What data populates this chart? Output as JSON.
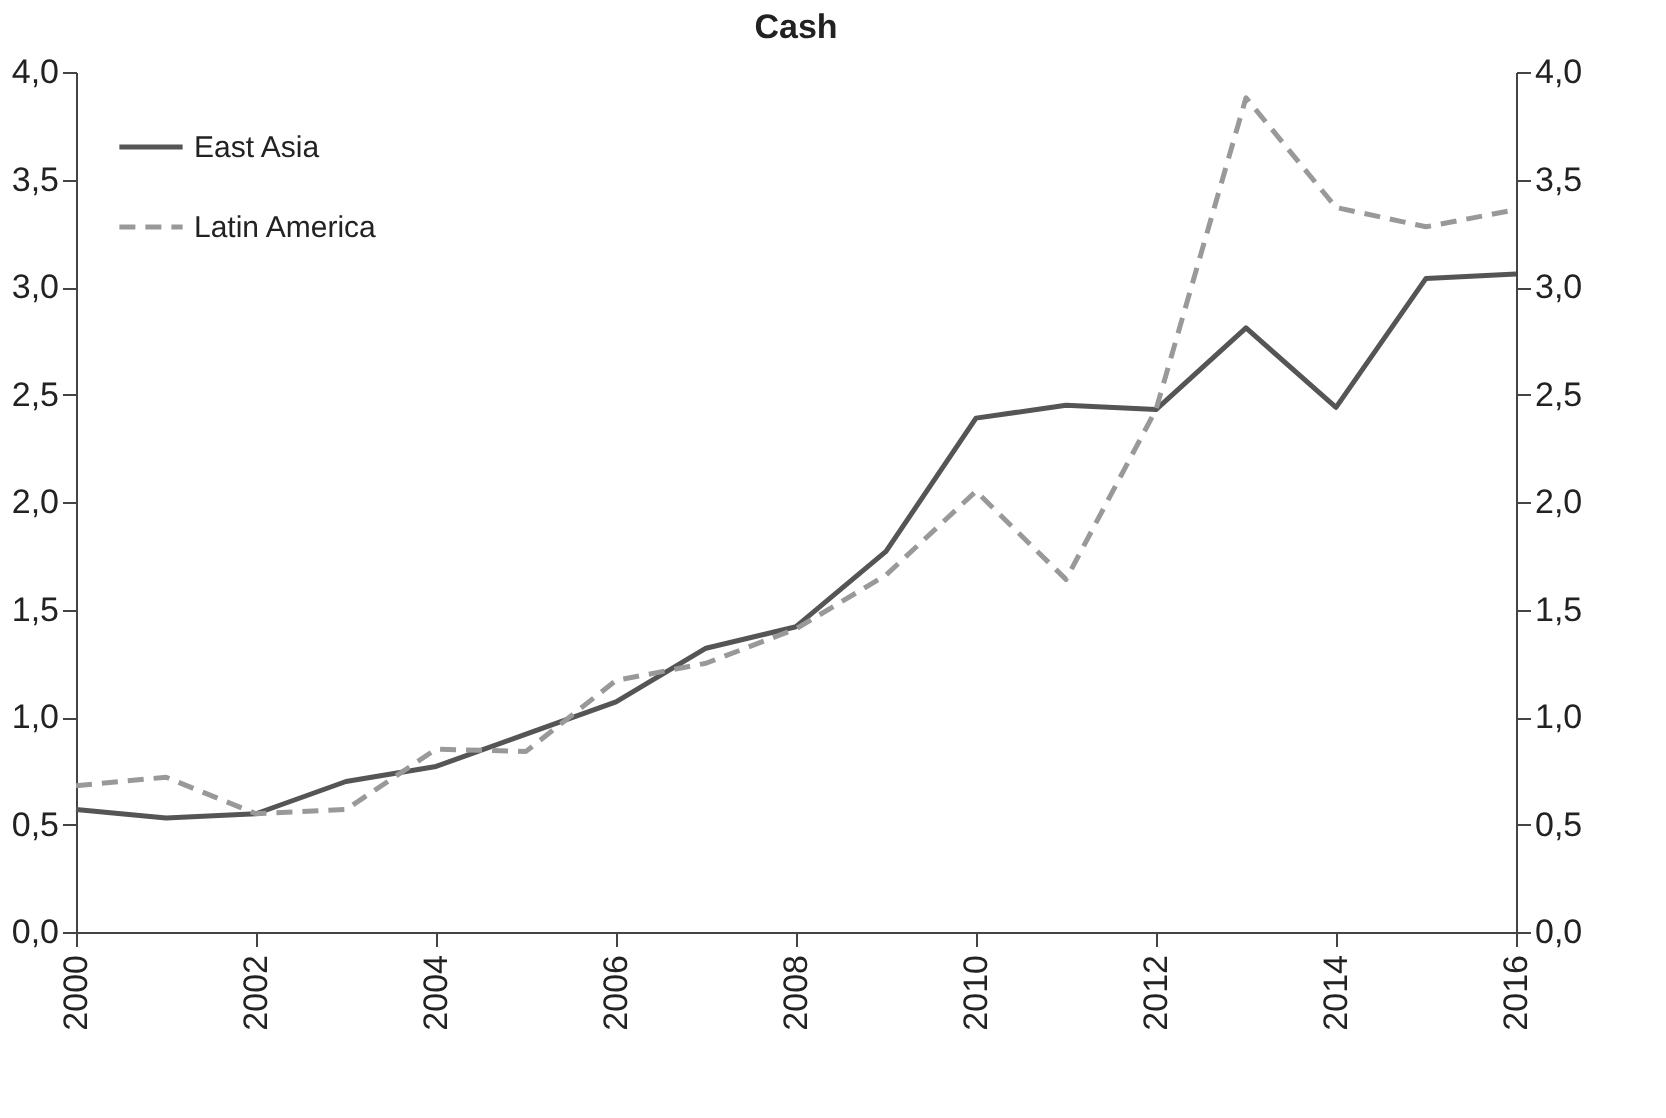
{
  "chart_data": {
    "type": "line",
    "title": "Cash",
    "x": [
      2000,
      2001,
      2002,
      2003,
      2004,
      2005,
      2006,
      2007,
      2008,
      2009,
      2010,
      2011,
      2012,
      2013,
      2014,
      2015,
      2016
    ],
    "series": [
      {
        "name": "East Asia",
        "color": "#555555",
        "line_style": "solid",
        "values": [
          0.57,
          0.53,
          0.55,
          0.7,
          0.77,
          0.92,
          1.07,
          1.32,
          1.42,
          1.77,
          2.39,
          2.45,
          2.43,
          2.81,
          2.44,
          3.04,
          3.06
        ]
      },
      {
        "name": "Latin America",
        "color": "#999999",
        "line_style": "dashed",
        "values": [
          0.68,
          0.72,
          0.55,
          0.57,
          0.85,
          0.84,
          1.17,
          1.25,
          1.41,
          1.66,
          2.05,
          1.64,
          2.43,
          3.88,
          3.37,
          3.28,
          3.36
        ]
      }
    ],
    "xlim": [
      2000,
      2016
    ],
    "xticks": [
      2000,
      2002,
      2004,
      2006,
      2008,
      2010,
      2012,
      2014,
      2016
    ],
    "ylim": [
      0,
      4
    ],
    "yticks": [
      {
        "value": 0,
        "label": "0,0"
      },
      {
        "value": 0.5,
        "label": "0,5"
      },
      {
        "value": 1,
        "label": "1,0"
      },
      {
        "value": 1.5,
        "label": "1,5"
      },
      {
        "value": 2,
        "label": "2,0"
      },
      {
        "value": 2.5,
        "label": "2,5"
      },
      {
        "value": 3,
        "label": "3,0"
      },
      {
        "value": 3.5,
        "label": "3,5"
      },
      {
        "value": 4,
        "label": "4,0"
      }
    ],
    "y2lim": [
      0,
      4
    ],
    "y2ticks": [
      {
        "value": 0,
        "label": "0,0"
      },
      {
        "value": 0.5,
        "label": "0,5"
      },
      {
        "value": 1,
        "label": "1,0"
      },
      {
        "value": 1.5,
        "label": "1,5"
      },
      {
        "value": 2,
        "label": "2,0"
      },
      {
        "value": 2.5,
        "label": "2,5"
      },
      {
        "value": 3,
        "label": "3,0"
      },
      {
        "value": 3.5,
        "label": "3,5"
      },
      {
        "value": 4,
        "label": "4,0"
      }
    ],
    "grid": false,
    "legend": "top left",
    "marker": "none"
  }
}
